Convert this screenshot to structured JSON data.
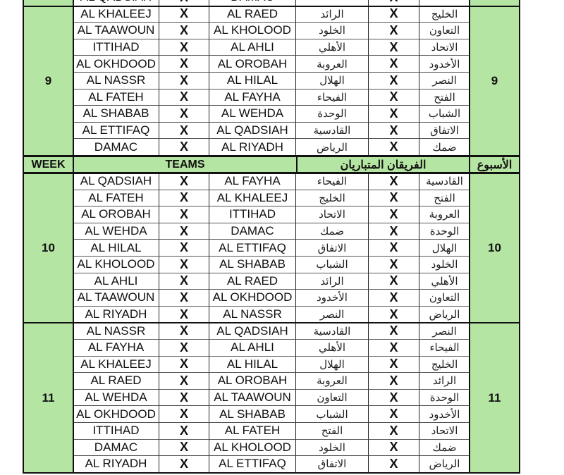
{
  "header": {
    "week_en": "WEEK",
    "teams_en": "TEAMS",
    "teams_ar": "الفريقان المتباريان",
    "week_ar": "الأسبوع"
  },
  "separator": "X",
  "colors": {
    "header_green": "#b5e5a2"
  },
  "partial_top_row": {
    "home_en": "AL QADSIAH",
    "away_en": "DAMAC"
  },
  "weeks": [
    {
      "week": "9",
      "matches": [
        {
          "home_en": "AL KHALEEJ",
          "away_en": "AL RAED",
          "away_ar": "الرائد",
          "home_ar": "الخليج"
        },
        {
          "home_en": "AL TAAWOUN",
          "away_en": "AL KHOLOOD",
          "away_ar": "الخلود",
          "home_ar": "التعاون"
        },
        {
          "home_en": "ITTIHAD",
          "away_en": "AL AHLI",
          "away_ar": "الأهلي",
          "home_ar": "الاتحاد"
        },
        {
          "home_en": "AL OKHDOOD",
          "away_en": "AL OROBAH",
          "away_ar": "العروبة",
          "home_ar": "الأخدود"
        },
        {
          "home_en": "AL NASSR",
          "away_en": "AL HILAL",
          "away_ar": "الهلال",
          "home_ar": "النصر"
        },
        {
          "home_en": "AL FATEH",
          "away_en": "AL FAYHA",
          "away_ar": "الفيحاء",
          "home_ar": "الفتح"
        },
        {
          "home_en": "AL SHABAB",
          "away_en": "AL WEHDA",
          "away_ar": "الوحدة",
          "home_ar": "الشباب"
        },
        {
          "home_en": "AL ETTIFAQ",
          "away_en": "AL QADSIAH",
          "away_ar": "القادسية",
          "home_ar": "الاتفاق"
        },
        {
          "home_en": "DAMAC",
          "away_en": "AL RIYADH",
          "away_ar": "الرياض",
          "home_ar": "ضمك"
        }
      ]
    },
    {
      "week": "10",
      "matches": [
        {
          "home_en": "AL QADSIAH",
          "away_en": "AL FAYHA",
          "away_ar": "الفيحاء",
          "home_ar": "القادسية"
        },
        {
          "home_en": "AL FATEH",
          "away_en": "AL KHALEEJ",
          "away_ar": "الخليج",
          "home_ar": "الفتح"
        },
        {
          "home_en": "AL OROBAH",
          "away_en": "ITTIHAD",
          "away_ar": "الاتحاد",
          "home_ar": "العروبة"
        },
        {
          "home_en": "AL WEHDA",
          "away_en": "DAMAC",
          "away_ar": "ضمك",
          "home_ar": "الوحدة"
        },
        {
          "home_en": "AL HILAL",
          "away_en": "AL ETTIFAQ",
          "away_ar": "الاتفاق",
          "home_ar": "الهلال"
        },
        {
          "home_en": "AL KHOLOOD",
          "away_en": "AL SHABAB",
          "away_ar": "الشباب",
          "home_ar": "الخلود"
        },
        {
          "home_en": "AL AHLI",
          "away_en": "AL RAED",
          "away_ar": "الرائد",
          "home_ar": "الأهلي"
        },
        {
          "home_en": "AL TAAWOUN",
          "away_en": "AL OKHDOOD",
          "away_ar": "الأخدود",
          "home_ar": "التعاون"
        },
        {
          "home_en": "AL RIYADH",
          "away_en": "AL NASSR",
          "away_ar": "النصر",
          "home_ar": "الرياض"
        }
      ]
    },
    {
      "week": "11",
      "matches": [
        {
          "home_en": "AL NASSR",
          "away_en": "AL QADSIAH",
          "away_ar": "القادسية",
          "home_ar": "النصر"
        },
        {
          "home_en": "AL FAYHA",
          "away_en": "AL AHLI",
          "away_ar": "الأهلي",
          "home_ar": "الفيحاء"
        },
        {
          "home_en": "AL KHALEEJ",
          "away_en": "AL HILAL",
          "away_ar": "الهلال",
          "home_ar": "الخليج"
        },
        {
          "home_en": "AL RAED",
          "away_en": "AL OROBAH",
          "away_ar": "العروبة",
          "home_ar": "الرائد"
        },
        {
          "home_en": "AL WEHDA",
          "away_en": "AL TAAWOUN",
          "away_ar": "التعاون",
          "home_ar": "الوحدة"
        },
        {
          "home_en": "AL OKHDOOD",
          "away_en": "AL SHABAB",
          "away_ar": "الشباب",
          "home_ar": "الأخدود"
        },
        {
          "home_en": "ITTIHAD",
          "away_en": "AL FATEH",
          "away_ar": "الفتح",
          "home_ar": "الاتحاد"
        },
        {
          "home_en": "DAMAC",
          "away_en": "AL KHOLOOD",
          "away_ar": "الخلود",
          "home_ar": "ضمك"
        },
        {
          "home_en": "AL RIYADH",
          "away_en": "AL ETTIFAQ",
          "away_ar": "الاتفاق",
          "home_ar": "الرياض"
        }
      ]
    }
  ]
}
